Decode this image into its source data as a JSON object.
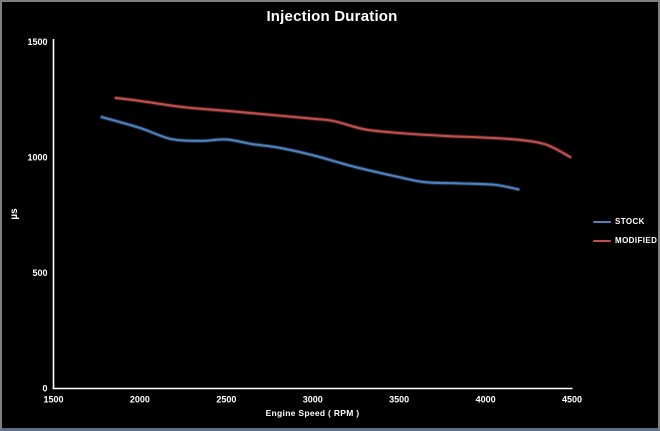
{
  "window": {
    "background": "#000000",
    "border_color": "#7f7f7f",
    "bottom_edge_color": "#5d6f8a"
  },
  "chart_data": {
    "type": "line",
    "title": "Injection Duration",
    "xlabel": "Engine Speed ( RPM )",
    "ylabel": "µs",
    "xlim": [
      1500,
      4500
    ],
    "ylim": [
      0,
      1500
    ],
    "x_ticks": [
      "1500",
      "2000",
      "2500",
      "3000",
      "3500",
      "4000",
      "4500"
    ],
    "x_tick_values": [
      1500,
      2000,
      2500,
      3000,
      3500,
      4000,
      4500
    ],
    "y_ticks": [
      "0",
      "500",
      "1000",
      "1500"
    ],
    "y_tick_values": [
      0,
      500,
      1000,
      1500
    ],
    "grid": false,
    "legend_position": "right",
    "axis_color": "#ffffff",
    "text_color": "#ffffff",
    "series": [
      {
        "name": "STOCK",
        "color": "#4F81BD",
        "points": [
          [
            1780,
            1175
          ],
          [
            2000,
            1128
          ],
          [
            2180,
            1080
          ],
          [
            2350,
            1072
          ],
          [
            2500,
            1078
          ],
          [
            2650,
            1058
          ],
          [
            2800,
            1043
          ],
          [
            3000,
            1010
          ],
          [
            3250,
            958
          ],
          [
            3500,
            915
          ],
          [
            3650,
            893
          ],
          [
            3850,
            888
          ],
          [
            4050,
            882
          ],
          [
            4190,
            862
          ]
        ]
      },
      {
        "name": "MODIFIED",
        "color": "#C0504D",
        "points": [
          [
            1860,
            1258
          ],
          [
            2000,
            1245
          ],
          [
            2250,
            1218
          ],
          [
            2500,
            1202
          ],
          [
            2750,
            1185
          ],
          [
            3000,
            1168
          ],
          [
            3120,
            1158
          ],
          [
            3300,
            1122
          ],
          [
            3500,
            1106
          ],
          [
            3750,
            1094
          ],
          [
            4000,
            1086
          ],
          [
            4200,
            1076
          ],
          [
            4350,
            1056
          ],
          [
            4490,
            1002
          ]
        ]
      }
    ]
  }
}
